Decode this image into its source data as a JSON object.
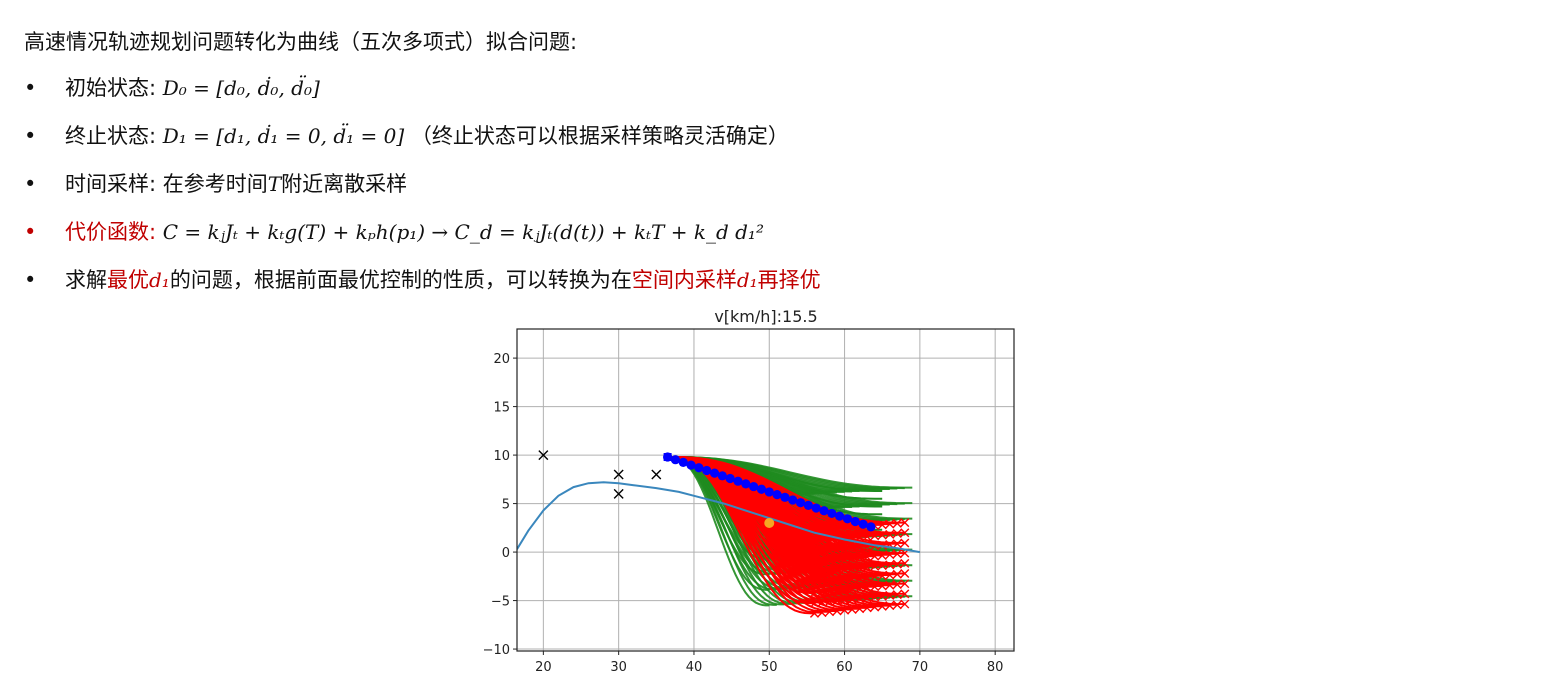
{
  "title": "高速情况轨迹规划问题转化为曲线（五次多项式）拟合问题:",
  "bullets": [
    {
      "label": "初始状态:",
      "math": "D₀ = [d₀, ḋ₀, d̈₀]",
      "suffix": ""
    },
    {
      "label": "终止状态:",
      "math": "D₁ = [d₁, ḋ₁ = 0, d̈₁ = 0]",
      "suffix": "（终止状态可以根据采样策略灵活确定）"
    },
    {
      "label": "时间采样:",
      "pre": "在参考时间",
      "math": "T",
      "suffix": "附近离散采样"
    },
    {
      "label": "代价函数:",
      "math": "C = kⱼJₜ + kₜg(T) + kₚh(p₁)  →  C_d = kⱼJₜ(d(t)) + kₜT + k_d d₁²",
      "suffix": ""
    },
    {
      "p1": "求解",
      "p2": "最优",
      "p3": "d₁",
      "p4": "的问题，根据前面最优控制的性质，可以转换为在",
      "p5": "空间内采样",
      "p6": "d₁",
      "p7": "再择优"
    }
  ],
  "bullet_char": "•",
  "chart_data": {
    "type": "line",
    "title": "v[km/h]:15.5",
    "xlabel": "",
    "ylabel": "",
    "xlim": [
      16.5,
      82.5
    ],
    "ylim": [
      -10.2,
      23
    ],
    "xticks": [
      20,
      30,
      40,
      50,
      60,
      70,
      80
    ],
    "yticks": [
      -10,
      -5,
      0,
      5,
      10,
      15,
      20
    ],
    "grid": true,
    "reference_path": {
      "color": "#3a87bd",
      "x": [
        16.5,
        18,
        20,
        22,
        24,
        26,
        28,
        30,
        32,
        35,
        38,
        40,
        44,
        48,
        52,
        56,
        60,
        64,
        67,
        70
      ],
      "y": [
        0.3,
        2.2,
        4.3,
        5.8,
        6.7,
        7.1,
        7.2,
        7.1,
        6.9,
        6.6,
        6.2,
        5.8,
        5.0,
        4.0,
        3.0,
        2.0,
        1.3,
        0.7,
        0.4,
        0.0
      ]
    },
    "obstacles": {
      "marker": "x",
      "color": "#000000",
      "x": [
        20,
        30,
        30,
        35
      ],
      "y": [
        10,
        8,
        6,
        8
      ]
    },
    "start_point": {
      "x": 36.5,
      "y": 9.8
    },
    "goal_point": {
      "x": 50,
      "y": 3,
      "color": "#f5a623"
    },
    "trajectories": {
      "green": {
        "color": "#1f8b1f",
        "t_start": 36.5,
        "d_start": 9.8
      },
      "red": {
        "color": "#ff0000"
      },
      "blue": {
        "color": "#0000ff"
      }
    }
  }
}
